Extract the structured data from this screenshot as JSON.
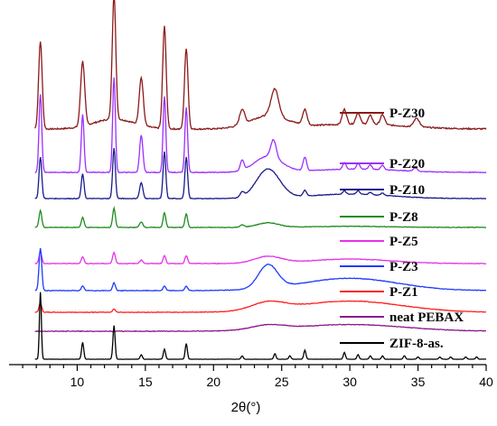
{
  "chart_data": {
    "type": "line",
    "title": "",
    "xlabel": "2θ(°)",
    "ylabel": "",
    "xlim": [
      5,
      40
    ],
    "x_ticks": [
      10,
      15,
      20,
      25,
      30,
      35,
      40
    ],
    "y_axis_visible": false,
    "grid": false,
    "legend": "right, each label beside its curve",
    "peaks_2theta": [
      7.3,
      10.4,
      12.7,
      14.7,
      16.4,
      18.0,
      22.1,
      24.5,
      26.7,
      29.6,
      30.6,
      31.5,
      32.4,
      34.0,
      36.6
    ],
    "series": [
      {
        "name": "P-Z30",
        "color": "#8b1a1a",
        "baseline": 45,
        "noise": 0.55,
        "peaks": [
          [
            7.3,
            70,
            0.13
          ],
          [
            10.4,
            52,
            0.15
          ],
          [
            12.7,
            100,
            0.13
          ],
          [
            14.7,
            38,
            0.15
          ],
          [
            16.4,
            82,
            0.13
          ],
          [
            18.0,
            65,
            0.13
          ],
          [
            22.1,
            12,
            0.18
          ],
          [
            24.5,
            22,
            0.28
          ],
          [
            26.7,
            12,
            0.16
          ],
          [
            29.6,
            12,
            0.16
          ],
          [
            30.6,
            9,
            0.16
          ],
          [
            31.5,
            7,
            0.16
          ],
          [
            32.4,
            8,
            0.16
          ],
          [
            34.9,
            7,
            0.2
          ]
        ],
        "humps": [
          [
            12.7,
            8,
            1.5
          ],
          [
            24.0,
            10,
            1.4
          ],
          [
            30.5,
            4,
            3.5
          ]
        ]
      },
      {
        "name": "P-Z20",
        "color": "#9b30ff",
        "baseline": 32,
        "noise": 0.3,
        "peaks": [
          [
            7.3,
            70,
            0.1
          ],
          [
            10.4,
            52,
            0.1
          ],
          [
            12.7,
            85,
            0.1
          ],
          [
            14.7,
            33,
            0.12
          ],
          [
            16.4,
            68,
            0.1
          ],
          [
            18.0,
            58,
            0.1
          ],
          [
            22.1,
            9,
            0.13
          ],
          [
            24.4,
            16,
            0.2
          ],
          [
            26.7,
            12,
            0.13
          ],
          [
            29.6,
            6,
            0.12
          ],
          [
            30.6,
            5,
            0.12
          ],
          [
            31.5,
            4,
            0.12
          ],
          [
            32.4,
            4,
            0.12
          ],
          [
            34.8,
            3,
            0.15
          ]
        ],
        "humps": [
          [
            24.0,
            14,
            1.0
          ],
          [
            30.5,
            3,
            3.0
          ]
        ]
      },
      {
        "name": "P-Z10",
        "color": "#1a1a8b",
        "baseline": 29,
        "noise": 0.25,
        "peaks": [
          [
            7.3,
            37,
            0.1
          ],
          [
            10.4,
            22,
            0.1
          ],
          [
            12.7,
            45,
            0.1
          ],
          [
            14.7,
            14,
            0.12
          ],
          [
            16.4,
            42,
            0.1
          ],
          [
            18.0,
            37,
            0.1
          ],
          [
            22.1,
            4,
            0.15
          ],
          [
            26.7,
            5,
            0.13
          ],
          [
            29.6,
            3,
            0.12
          ],
          [
            30.6,
            3,
            0.12
          ],
          [
            31.5,
            2,
            0.12
          ],
          [
            32.4,
            2,
            0.12
          ]
        ],
        "humps": [
          [
            24.0,
            26,
            0.85
          ],
          [
            30.0,
            4,
            3.0
          ]
        ]
      },
      {
        "name": "P-Z8",
        "color": "#1f8b1f",
        "baseline": 20,
        "noise": 0.25,
        "peaks": [
          [
            7.3,
            15,
            0.1
          ],
          [
            10.4,
            9,
            0.1
          ],
          [
            12.7,
            17,
            0.1
          ],
          [
            14.7,
            5,
            0.12
          ],
          [
            16.4,
            13,
            0.1
          ],
          [
            18.0,
            12,
            0.1
          ],
          [
            22.1,
            2,
            0.15
          ]
        ],
        "humps": [
          [
            24.0,
            4,
            0.8
          ],
          [
            30.0,
            1,
            3.0
          ]
        ]
      },
      {
        "name": "P-Z5",
        "color": "#e632e6",
        "baseline": 23,
        "noise": 0.25,
        "peaks": [
          [
            7.3,
            10,
            0.1
          ],
          [
            10.4,
            6,
            0.1
          ],
          [
            12.7,
            10,
            0.1
          ],
          [
            14.7,
            3,
            0.12
          ],
          [
            16.4,
            7,
            0.1
          ],
          [
            18.0,
            7,
            0.1
          ]
        ],
        "humps": [
          [
            24.0,
            6,
            1.0
          ],
          [
            30.0,
            4,
            3.0
          ]
        ]
      },
      {
        "name": "P-Z3",
        "color": "#1e3cff",
        "baseline": 19,
        "noise": 0.25,
        "peaks": [
          [
            7.3,
            38,
            0.1
          ],
          [
            10.4,
            4,
            0.1
          ],
          [
            12.7,
            7,
            0.1
          ],
          [
            16.4,
            4,
            0.1
          ],
          [
            18.0,
            4,
            0.1
          ]
        ],
        "humps": [
          [
            24.0,
            21,
            0.7
          ],
          [
            30.0,
            11,
            3.5
          ]
        ]
      },
      {
        "name": "P-Z1",
        "color": "#ff2020",
        "baseline": 13,
        "noise": 0.25,
        "peaks": [
          [
            7.3,
            8,
            0.1
          ],
          [
            12.7,
            3,
            0.1
          ]
        ],
        "humps": [
          [
            24.0,
            7,
            1.2
          ],
          [
            30.0,
            10,
            3.8
          ]
        ]
      },
      {
        "name": "neat PEBAX",
        "color": "#8b1a8b",
        "baseline": 14,
        "noise": 0.25,
        "peaks": [],
        "humps": [
          [
            24.0,
            4,
            1.2
          ],
          [
            30.0,
            6,
            4.0
          ]
        ]
      },
      {
        "name": "ZIF-8-as.",
        "color": "#000000",
        "baseline": 0,
        "noise": 0.1,
        "peaks": [
          [
            7.3,
            60,
            0.07
          ],
          [
            10.4,
            15,
            0.08
          ],
          [
            12.7,
            30,
            0.08
          ],
          [
            14.7,
            4,
            0.08
          ],
          [
            16.4,
            9,
            0.08
          ],
          [
            18.0,
            14,
            0.08
          ],
          [
            22.1,
            3,
            0.08
          ],
          [
            24.5,
            5,
            0.08
          ],
          [
            25.6,
            3,
            0.08
          ],
          [
            26.7,
            8,
            0.08
          ],
          [
            29.6,
            6,
            0.08
          ],
          [
            30.6,
            4,
            0.08
          ],
          [
            31.5,
            3,
            0.08
          ],
          [
            32.4,
            3,
            0.08
          ],
          [
            34.0,
            3,
            0.08
          ],
          [
            35.0,
            2,
            0.08
          ],
          [
            36.6,
            2,
            0.08
          ],
          [
            37.4,
            2,
            0.08
          ],
          [
            38.5,
            2,
            0.08
          ],
          [
            39.3,
            2,
            0.08
          ]
        ],
        "humps": []
      }
    ]
  }
}
